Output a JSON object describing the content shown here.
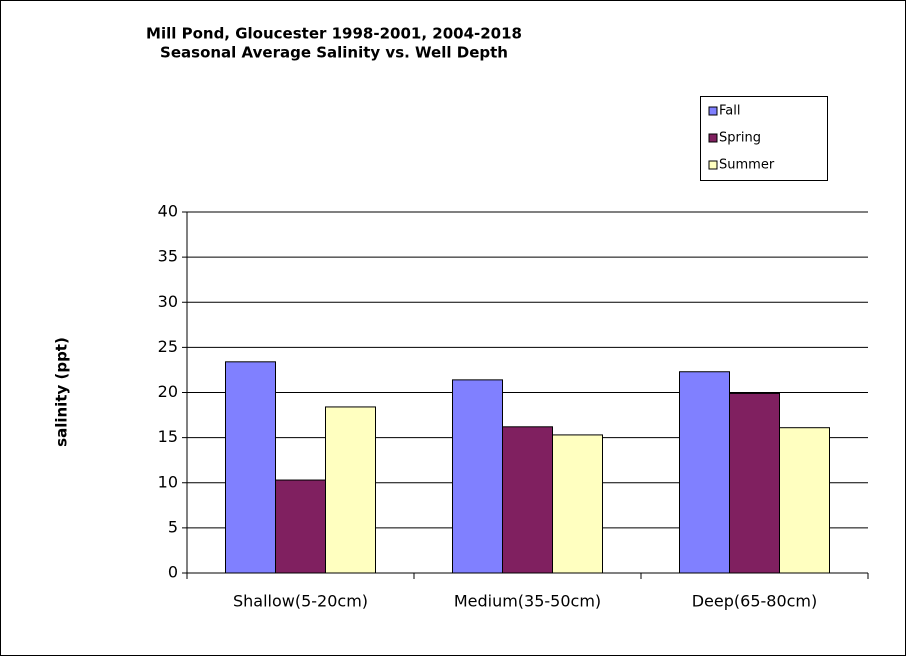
{
  "chart_data": {
    "type": "bar",
    "title": "Mill Pond, Gloucester 1998-2001, 2004-2018",
    "subtitle": "Seasonal Average Salinity vs. Well Depth",
    "y_label": "salinity (ppt)",
    "categories": [
      "Shallow(5-20cm)",
      "Medium(35-50cm)",
      "Deep(65-80cm)"
    ],
    "series": [
      {
        "name": "Fall",
        "color": "#8080ff",
        "values": [
          23.4,
          21.4,
          22.3
        ]
      },
      {
        "name": "Spring",
        "color": "#802060",
        "values": [
          10.3,
          16.2,
          19.9
        ]
      },
      {
        "name": "Summer",
        "color": "#ffffc0",
        "values": [
          18.4,
          15.3,
          16.1
        ]
      }
    ],
    "ylim": [
      0,
      40
    ],
    "yticks": [
      0,
      5,
      10,
      15,
      20,
      25,
      30,
      35,
      40
    ],
    "grid": true,
    "legend": "top-right"
  }
}
